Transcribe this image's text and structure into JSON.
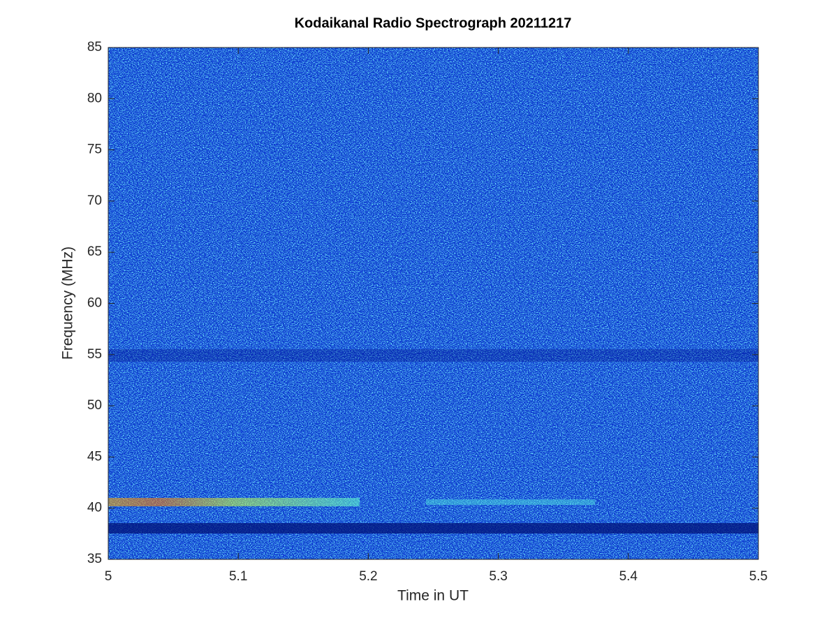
{
  "chart_data": {
    "type": "spectrogram",
    "title": "Kodaikanal Radio Spectrograph  20211217",
    "xlabel": "Time in UT",
    "ylabel": "Frequency (MHz)",
    "xlim": [
      5,
      5.5
    ],
    "xticks": [
      5,
      5.1,
      5.2,
      5.3,
      5.4,
      5.5
    ],
    "ylim": [
      35,
      85
    ],
    "yticks": [
      35,
      40,
      45,
      50,
      55,
      60,
      65,
      70,
      75,
      80,
      85
    ]
  }
}
